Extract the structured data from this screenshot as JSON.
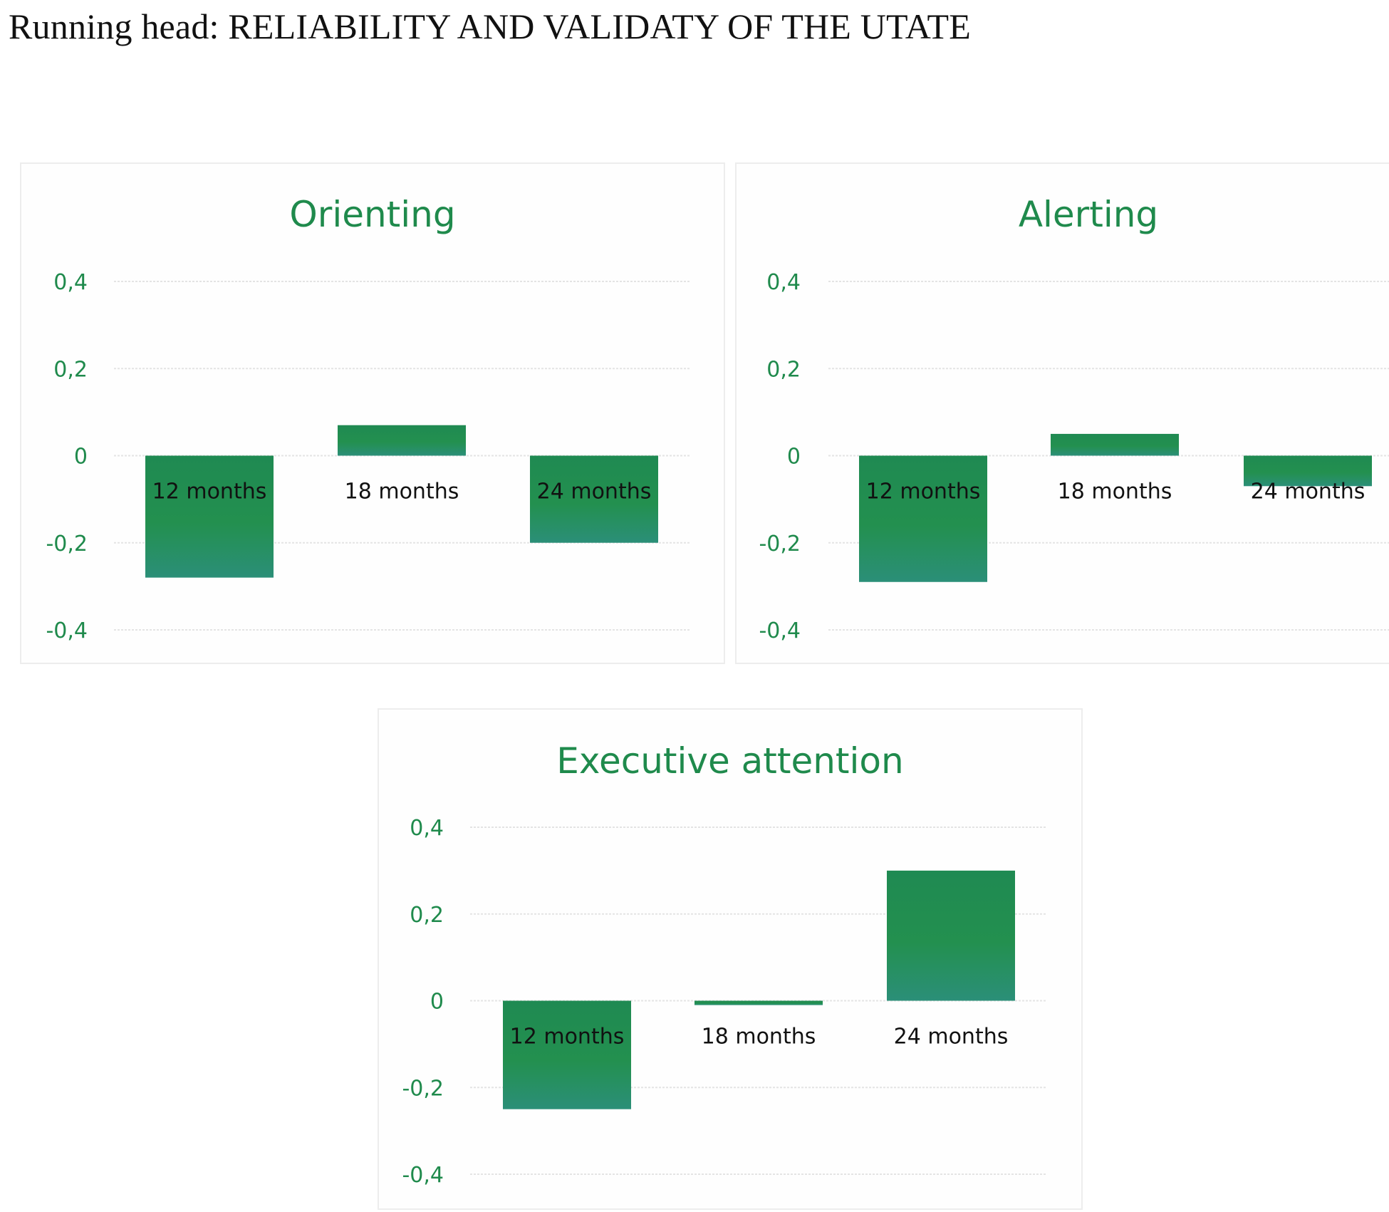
{
  "running_head": "Running head: RELIABILITY AND VALIDATY OF THE UTATE",
  "colors": {
    "title": "#1f8a4c",
    "tick_label": "#1f8a4c",
    "bar_top": "#1f8a52",
    "bar_bottom": "#2b8f78",
    "category_label": "#111111",
    "gridline": "#e4e4e4"
  },
  "chart_data": [
    {
      "type": "bar",
      "title": "Orienting",
      "categories": [
        "12 months",
        "18 months",
        "24 months"
      ],
      "values": [
        -0.28,
        0.07,
        -0.2
      ],
      "ylim": [
        -0.4,
        0.4
      ],
      "yticks": [
        0.4,
        0.2,
        0,
        -0.2,
        -0.4
      ],
      "ytick_labels": [
        "0,4",
        "0,2",
        "0",
        "-0,2",
        "-0,4"
      ],
      "grid": true,
      "legend": false
    },
    {
      "type": "bar",
      "title": "Alerting",
      "categories": [
        "12 months",
        "18 months",
        "24 months"
      ],
      "values": [
        -0.29,
        0.05,
        -0.07
      ],
      "ylim": [
        -0.4,
        0.4
      ],
      "yticks": [
        0.4,
        0.2,
        0,
        -0.2,
        -0.4
      ],
      "ytick_labels": [
        "0,4",
        "0,2",
        "0",
        "-0,2",
        "-0,4"
      ],
      "grid": true,
      "legend": false
    },
    {
      "type": "bar",
      "title": "Executive attention",
      "categories": [
        "12 months",
        "18 months",
        "24 months"
      ],
      "values": [
        -0.25,
        -0.01,
        0.3
      ],
      "ylim": [
        -0.4,
        0.4
      ],
      "yticks": [
        0.4,
        0.2,
        0,
        -0.2,
        -0.4
      ],
      "ytick_labels": [
        "0,4",
        "0,2",
        "0",
        "-0,2",
        "-0,4"
      ],
      "grid": true,
      "legend": false
    }
  ]
}
